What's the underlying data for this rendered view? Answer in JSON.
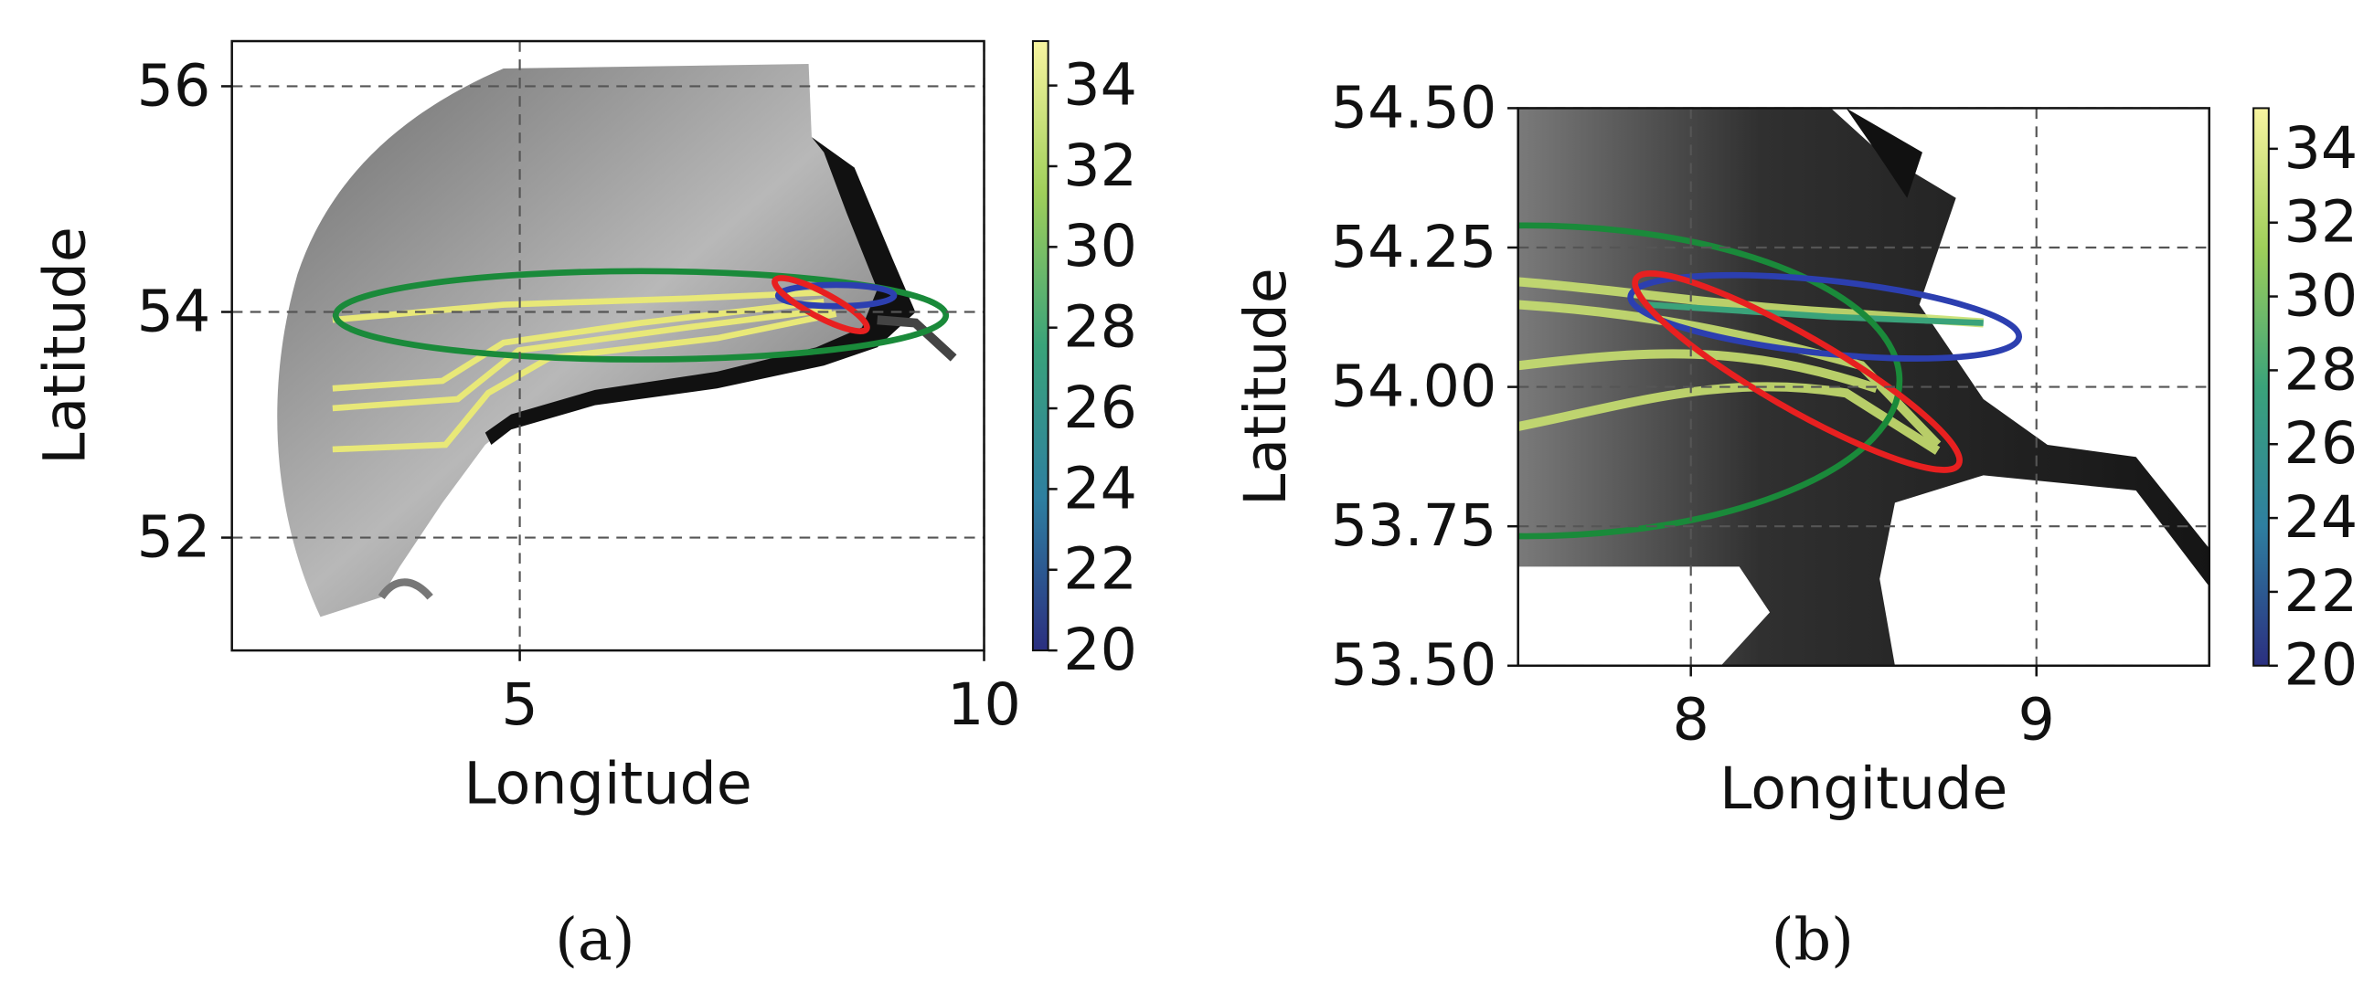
{
  "chart_data": [
    {
      "type": "map",
      "xlabel": "Longitude",
      "ylabel": "Latitude",
      "caption": "(a)",
      "xlim": [
        1.9,
        10
      ],
      "xticks": [
        5,
        10
      ],
      "ylim": [
        51.0,
        56.4
      ],
      "yticks": [
        52,
        54,
        56
      ],
      "grid": true,
      "colorbar": {
        "lim": [
          20,
          35.1
        ],
        "ticks": [
          20,
          22,
          24,
          26,
          28,
          30,
          32,
          34
        ],
        "colors": [
          "#2b2f80",
          "#2e7fa0",
          "#3aa37a",
          "#9fcf5a",
          "#f8f4a0"
        ]
      }
    },
    {
      "type": "map",
      "xlabel": "Longitude",
      "ylabel": "Latitude",
      "caption": "(b)",
      "xlim": [
        7.5,
        9.5
      ],
      "xticks": [
        8,
        9
      ],
      "ylim": [
        53.5,
        54.5
      ],
      "yticks": [
        {
          "value": 53.5,
          "label": "53.50"
        },
        53.75,
        {
          "value": 54.0,
          "label": "54.00"
        },
        54.25,
        {
          "value": 54.5,
          "label": "54.50"
        }
      ],
      "grid": true,
      "colorbar": {
        "lim": [
          20,
          35.1
        ],
        "ticks": [
          20,
          22,
          24,
          26,
          28,
          30,
          32,
          34
        ],
        "colors": [
          "#2b2f80",
          "#2e7fa0",
          "#3aa37a",
          "#9fcf5a",
          "#f8f4a0"
        ]
      }
    }
  ]
}
